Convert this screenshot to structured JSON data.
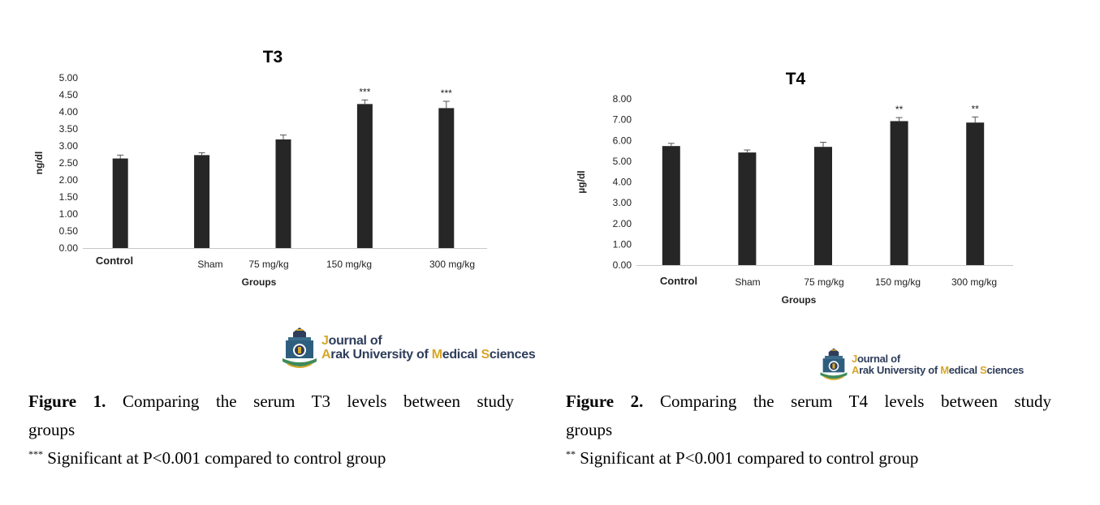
{
  "chart_data": [
    {
      "type": "bar",
      "title": "T3",
      "xlabel": "Groups",
      "ylabel": "ng/dl",
      "categories": [
        "Control",
        "Sham",
        "75 mg/kg",
        "150 mg/kg",
        "300 mg/kg"
      ],
      "values": [
        2.63,
        2.73,
        3.19,
        4.23,
        4.11
      ],
      "errors": [
        0.1,
        0.07,
        0.13,
        0.12,
        0.2
      ],
      "annotations": [
        "",
        "",
        "",
        "***",
        "***"
      ],
      "ylim": [
        0,
        5
      ],
      "yticks": [
        "0.00",
        "0.50",
        "1.00",
        "1.50",
        "2.00",
        "2.50",
        "3.00",
        "3.50",
        "4.00",
        "4.50",
        "5.00"
      ],
      "bar_color": "#262626",
      "grid": false
    },
    {
      "type": "bar",
      "title": "T4",
      "xlabel": "Groups",
      "ylabel": "µg/dl",
      "categories": [
        "Control",
        "Sham",
        "75 mg/kg",
        "150 mg/kg",
        "300 mg/kg"
      ],
      "values": [
        5.73,
        5.42,
        5.69,
        6.93,
        6.86
      ],
      "errors": [
        0.13,
        0.12,
        0.22,
        0.17,
        0.27
      ],
      "annotations": [
        "",
        "",
        "",
        "**",
        "**"
      ],
      "ylim": [
        0,
        8
      ],
      "yticks": [
        "0.00",
        "1.00",
        "2.00",
        "3.00",
        "4.00",
        "5.00",
        "6.00",
        "7.00",
        "8.00"
      ],
      "bar_color": "#262626",
      "grid": false
    }
  ],
  "logo": {
    "line1_first": "J",
    "line1_rest": "ournal of",
    "line2_a": "A",
    "line2_b": "rak University of ",
    "line2_m": "M",
    "line2_c": "edical ",
    "line2_s": "S",
    "line2_d": "ciences",
    "accent_color": "#d7a728",
    "dark_color": "#2e3d5b",
    "emblem_icon": "university-emblem-icon"
  },
  "captions": [
    {
      "label": "Figure 1.",
      "text_line1": "Comparing the serum T3 levels between study",
      "text_line2": "groups",
      "note_mark": "***",
      "note_text": "Significant at P<0.001 compared to control group"
    },
    {
      "label": "Figure 2.",
      "text_line1": "Comparing the serum T4 levels between study",
      "text_line2": "groups",
      "note_mark": "**",
      "note_text": "Significant at P<0.001 compared to control group"
    }
  ]
}
